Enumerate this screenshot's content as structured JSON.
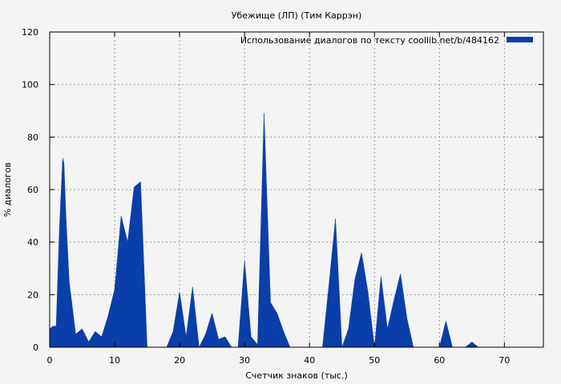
{
  "chart_data": {
    "type": "area",
    "title": "Убежище (ЛП) (Тим Каррэн)",
    "xlabel": "Счетчик знаков (тыс.)",
    "ylabel": "% диалогов",
    "xlim": [
      0,
      76
    ],
    "ylim": [
      0,
      120
    ],
    "x_ticks": [
      "0",
      "10",
      "20",
      "30",
      "40",
      "50",
      "60",
      "70"
    ],
    "y_ticks": [
      "0",
      "20",
      "40",
      "60",
      "80",
      "100",
      "120"
    ],
    "grid": true,
    "legend_position": "top-right",
    "fill_color": "#0a3ea8",
    "series": [
      {
        "name": "Использование диалогов по тексту  coollib.net/b/484162",
        "x": [
          0,
          0.5,
          1,
          1.5,
          2,
          2.2,
          2.5,
          3,
          4,
          5,
          6,
          7,
          8,
          9,
          10,
          11,
          12,
          13,
          14,
          15,
          16,
          17,
          18,
          19,
          20,
          21,
          22,
          23,
          24,
          25,
          26,
          27,
          28,
          29,
          30,
          31,
          32,
          33,
          34,
          35,
          36,
          37,
          38,
          39,
          40,
          41,
          42,
          43,
          44,
          45,
          46,
          47,
          48,
          49,
          50,
          51,
          52,
          53,
          54,
          55,
          56,
          57,
          58,
          59,
          60,
          61,
          62,
          63,
          64,
          65,
          66,
          67,
          68,
          69,
          70,
          71,
          72,
          73,
          74,
          75,
          76
        ],
        "y": [
          7,
          8,
          8,
          45,
          72,
          70,
          50,
          25,
          5,
          7,
          2,
          6,
          4,
          12,
          22,
          50,
          40,
          61,
          63,
          0,
          0,
          0,
          0,
          6,
          21,
          4,
          23,
          0,
          5,
          13,
          3,
          4,
          0,
          0,
          33,
          4,
          1,
          89,
          17,
          13,
          6,
          0,
          0,
          0,
          0,
          0,
          0,
          24,
          49,
          0,
          7,
          26,
          36,
          21,
          0,
          27,
          7,
          18,
          28,
          11,
          0,
          0,
          0,
          0,
          0,
          10,
          0,
          0,
          0,
          2,
          0,
          0,
          0,
          0,
          0,
          0,
          0,
          0,
          0,
          0,
          0
        ]
      }
    ]
  }
}
